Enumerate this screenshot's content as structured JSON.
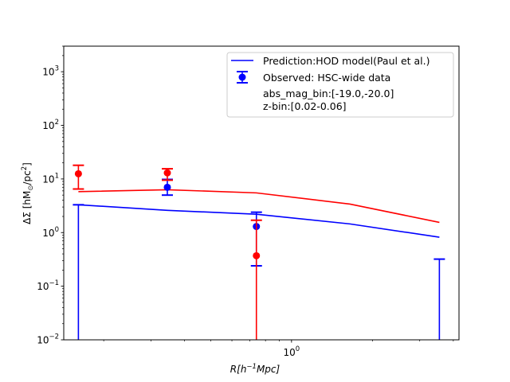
{
  "chart_data": {
    "type": "line",
    "title": "",
    "xlabel": "R[h^{-1}Mpc]",
    "ylabel": "ΔΣ [hM_⊙/pc^2]",
    "xscale": "log",
    "yscale": "log",
    "xlim": [
      0.142,
      4.2
    ],
    "ylim": [
      0.01,
      3000
    ],
    "grid": false,
    "legend_placement": "top-right",
    "x_ticks": [
      {
        "value": 1,
        "label": "10^0"
      }
    ],
    "y_ticks": [
      {
        "value": 0.01,
        "label": "10^-2"
      },
      {
        "value": 0.1,
        "label": "10^-1"
      },
      {
        "value": 1,
        "label": "10^0"
      },
      {
        "value": 10,
        "label": "10^1"
      },
      {
        "value": 100,
        "label": "10^2"
      },
      {
        "value": 1000,
        "label": "10^3"
      }
    ],
    "series": [
      {
        "name": "Prediction:HOD model(Paul et al.)",
        "kind": "line",
        "color": "#0000ff",
        "x": [
          0.161,
          0.345,
          0.74,
          1.65,
          3.55
        ],
        "y": [
          3.3,
          2.6,
          2.2,
          1.45,
          0.82
        ]
      },
      {
        "name": "",
        "kind": "line",
        "color": "#ff0000",
        "x": [
          0.161,
          0.345,
          0.74,
          1.65,
          3.55
        ],
        "y": [
          5.8,
          6.3,
          5.5,
          3.4,
          1.55
        ]
      },
      {
        "name": "Observed: HSC-wide data",
        "kind": "errorbar",
        "color": "#0000ff",
        "points": [
          {
            "x": 0.161,
            "y": null,
            "lower": 0.01,
            "upper": 3.3
          },
          {
            "x": 0.345,
            "y": 7.0,
            "lower": 5.0,
            "upper": 9.8
          },
          {
            "x": 0.74,
            "y": 1.3,
            "lower": 0.24,
            "upper": 2.4
          },
          {
            "x": 3.55,
            "y": null,
            "lower": 0.01,
            "upper": 0.32
          }
        ]
      },
      {
        "name": "",
        "kind": "errorbar",
        "color": "#ff0000",
        "points": [
          {
            "x": 0.161,
            "y": 12.5,
            "lower": 6.5,
            "upper": 18.0
          },
          {
            "x": 0.345,
            "y": 13.0,
            "lower": 9.5,
            "upper": 15.5
          },
          {
            "x": 0.74,
            "y": 0.37,
            "lower": 0.01,
            "upper": 1.7
          }
        ]
      }
    ],
    "legend_text": [
      "abs_mag_bin:[-19.0,-20.0]",
      "z-bin:[0.02-0.06]"
    ]
  }
}
